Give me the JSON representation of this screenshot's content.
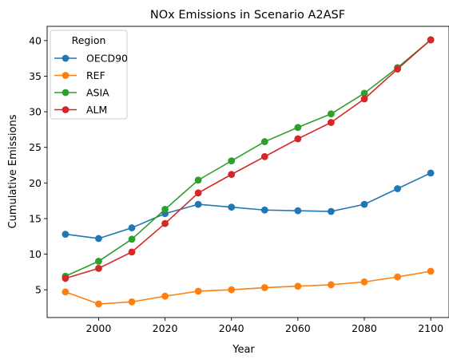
{
  "chart_data": {
    "type": "line",
    "title": "NOx Emissions in Scenario A2ASF",
    "xlabel": "Year",
    "ylabel": "Cumulative Emissions",
    "x": [
      1990,
      2000,
      2010,
      2020,
      2030,
      2040,
      2050,
      2060,
      2070,
      2080,
      2090,
      2100
    ],
    "xlim": [
      1984.5,
      2105.5
    ],
    "ylim": [
      1.1,
      42.0
    ],
    "xticks": [
      2000,
      2020,
      2040,
      2060,
      2080,
      2100
    ],
    "yticks": [
      5,
      10,
      15,
      20,
      25,
      30,
      35,
      40
    ],
    "grid": false,
    "markers": true,
    "legend": {
      "title": "Region",
      "placement": "top-left"
    },
    "series": [
      {
        "name": "OECD90",
        "color": "#1f77b4",
        "values": [
          12.8,
          12.2,
          13.7,
          15.7,
          17.0,
          16.6,
          16.2,
          16.1,
          16.0,
          17.0,
          19.2,
          21.4
        ]
      },
      {
        "name": "REF",
        "color": "#ff7f0e",
        "values": [
          4.7,
          3.0,
          3.3,
          4.1,
          4.8,
          5.0,
          5.3,
          5.5,
          5.7,
          6.1,
          6.8,
          7.6
        ]
      },
      {
        "name": "ASIA",
        "color": "#2ca02c",
        "values": [
          6.9,
          9.0,
          12.1,
          16.3,
          20.4,
          23.1,
          25.8,
          27.8,
          29.7,
          32.6,
          36.2,
          40.1
        ]
      },
      {
        "name": "ALM",
        "color": "#d62728",
        "values": [
          6.6,
          8.0,
          10.3,
          14.3,
          18.6,
          21.2,
          23.7,
          26.2,
          28.5,
          31.8,
          36.0,
          40.1
        ]
      }
    ]
  }
}
